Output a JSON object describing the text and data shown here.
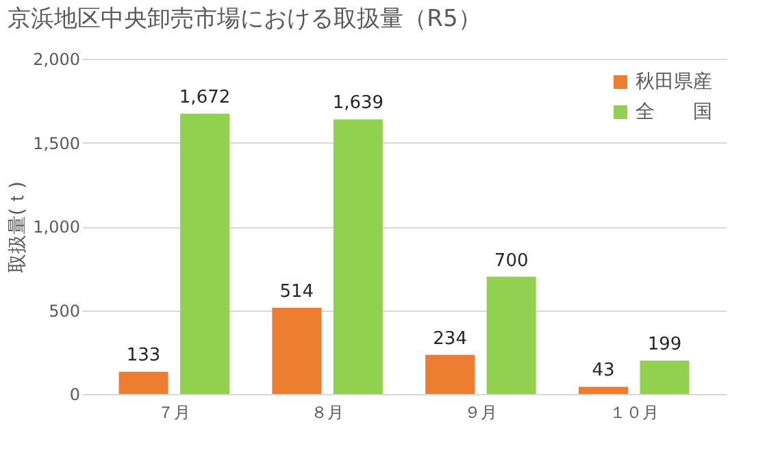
{
  "chart_data": {
    "type": "bar",
    "title": "京浜地区中央卸売市場における取扱量（R5）",
    "ylabel": "取扱量(ｔ)",
    "categories": [
      "７月",
      "８月",
      "９月",
      "１０月"
    ],
    "series": [
      {
        "name": "秋田県産",
        "color": "#ed7d31",
        "values": [
          133,
          514,
          234,
          43
        ],
        "value_labels": [
          "133",
          "514",
          "234",
          "43"
        ]
      },
      {
        "name": "全　　国",
        "color": "#92d050",
        "values": [
          1672,
          1639,
          700,
          199
        ],
        "value_labels": [
          "1,672",
          "1,639",
          "700",
          "199"
        ]
      }
    ],
    "ylim": [
      0,
      2000
    ],
    "yticks": [
      {
        "value": 0,
        "label": "0"
      },
      {
        "value": 500,
        "label": "500"
      },
      {
        "value": 1000,
        "label": "1,000"
      },
      {
        "value": 1500,
        "label": "1,500"
      },
      {
        "value": 2000,
        "label": "2,000"
      }
    ],
    "grid": "y",
    "legend": "top right"
  }
}
